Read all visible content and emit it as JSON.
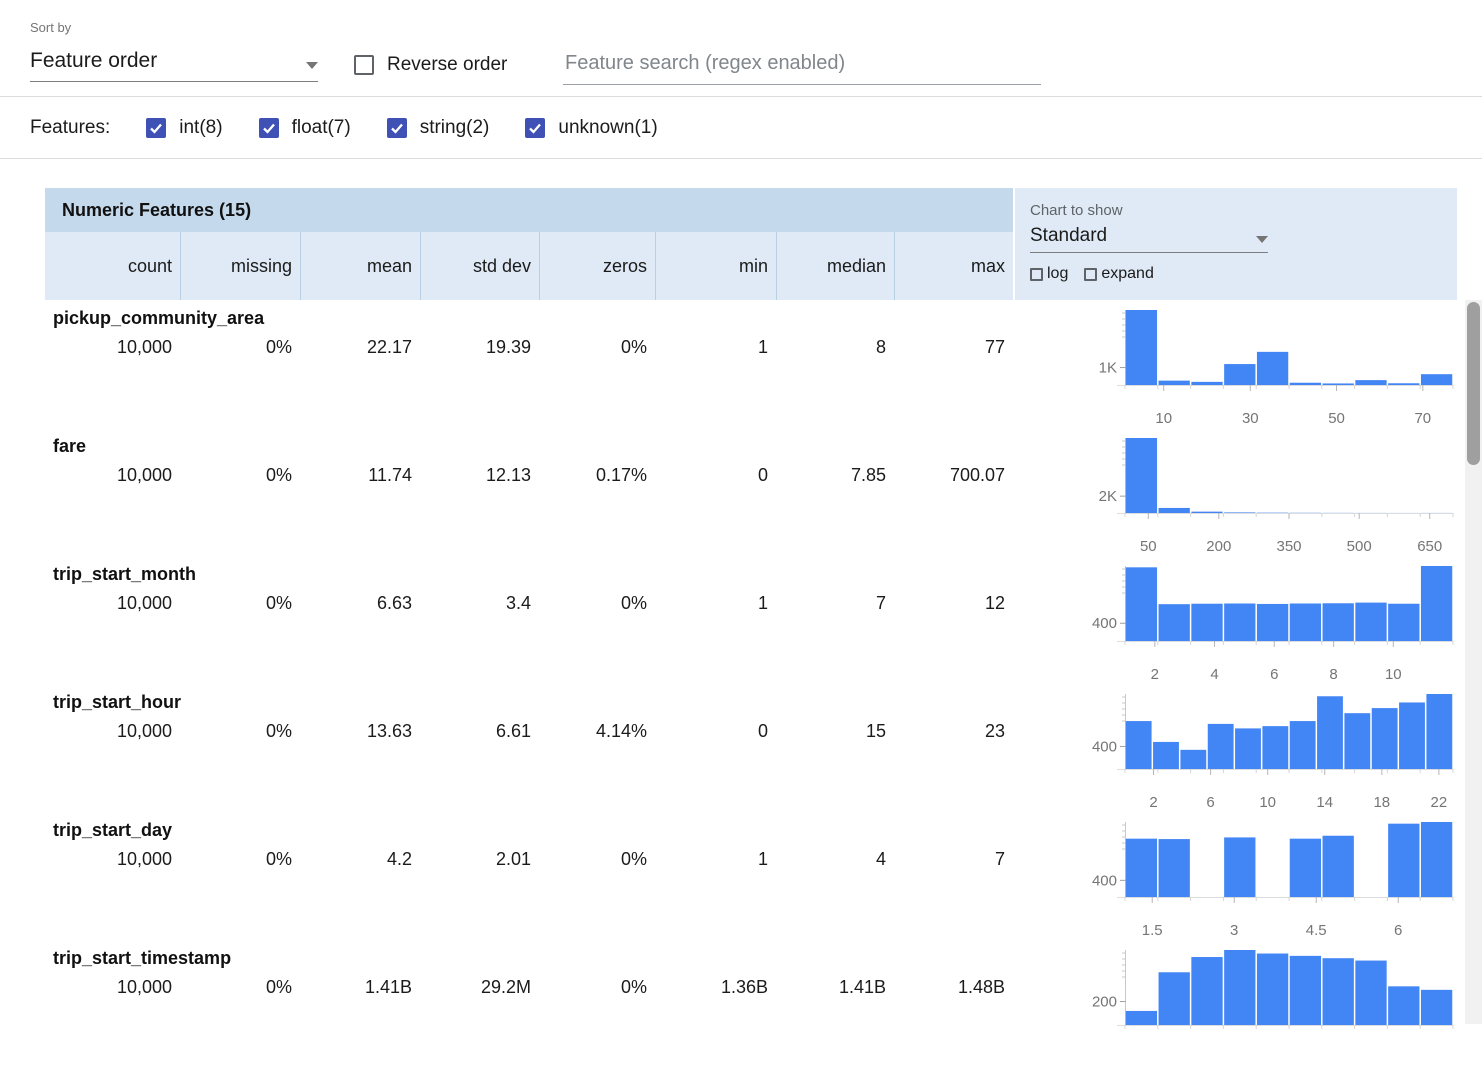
{
  "colors": {
    "accent": "#3f51b5",
    "bar": "#4285f4",
    "header_band": "#c5d9ec",
    "subheader_band": "#dfeaf6"
  },
  "toolbar": {
    "sort_by_label": "Sort by",
    "sort_by_value": "Feature order",
    "reverse_order_label": "Reverse order",
    "search_placeholder": "Feature search (regex enabled)"
  },
  "features_filter": {
    "label": "Features:",
    "items": [
      {
        "label": "int(8)",
        "checked": true
      },
      {
        "label": "float(7)",
        "checked": true
      },
      {
        "label": "string(2)",
        "checked": true
      },
      {
        "label": "unknown(1)",
        "checked": true
      }
    ]
  },
  "table": {
    "title": "Numeric Features (15)",
    "columns": [
      "count",
      "missing",
      "mean",
      "std dev",
      "zeros",
      "min",
      "median",
      "max"
    ],
    "rows": [
      {
        "name": "pickup_community_area",
        "stats": [
          "10,000",
          "0%",
          "22.17",
          "19.39",
          "0%",
          "1",
          "8",
          "77"
        ]
      },
      {
        "name": "fare",
        "stats": [
          "10,000",
          "0%",
          "11.74",
          "12.13",
          "0.17%",
          "0",
          "7.85",
          "700.07"
        ]
      },
      {
        "name": "trip_start_month",
        "stats": [
          "10,000",
          "0%",
          "6.63",
          "3.4",
          "0%",
          "1",
          "7",
          "12"
        ]
      },
      {
        "name": "trip_start_hour",
        "stats": [
          "10,000",
          "0%",
          "13.63",
          "6.61",
          "4.14%",
          "0",
          "15",
          "23"
        ]
      },
      {
        "name": "trip_start_day",
        "stats": [
          "10,000",
          "0%",
          "4.2",
          "2.01",
          "0%",
          "1",
          "4",
          "7"
        ]
      },
      {
        "name": "trip_start_timestamp",
        "stats": [
          "10,000",
          "0%",
          "1.41B",
          "29.2M",
          "0%",
          "1.36B",
          "1.41B",
          "1.48B"
        ]
      }
    ]
  },
  "chart_controls": {
    "label": "Chart to show",
    "selected": "Standard",
    "log_label": "log",
    "expand_label": "expand"
  },
  "chart_data": [
    {
      "type": "bar",
      "feature": "pickup_community_area",
      "x_range": [
        1,
        77
      ],
      "values": [
        4300,
        250,
        180,
        1200,
        1900,
        130,
        90,
        280,
        100,
        620
      ],
      "y_tick": {
        "label": "1K",
        "value": 1000
      },
      "x_ticks": [
        {
          "label": "10",
          "pos": 0.118
        },
        {
          "label": "30",
          "pos": 0.382
        },
        {
          "label": "50",
          "pos": 0.645
        },
        {
          "label": "70",
          "pos": 0.908
        }
      ]
    },
    {
      "type": "bar",
      "feature": "fare",
      "x_range": [
        0,
        700.07
      ],
      "values": [
        8900,
        600,
        160,
        70,
        40,
        25,
        15,
        10,
        6,
        8
      ],
      "y_tick": {
        "label": "2K",
        "value": 2000
      },
      "x_ticks": [
        {
          "label": "50",
          "pos": 0.071
        },
        {
          "label": "200",
          "pos": 0.286
        },
        {
          "label": "350",
          "pos": 0.5
        },
        {
          "label": "500",
          "pos": 0.714
        },
        {
          "label": "650",
          "pos": 0.929
        }
      ]
    },
    {
      "type": "bar",
      "feature": "trip_start_month",
      "x_range": [
        1,
        12
      ],
      "values": [
        1660,
        830,
        840,
        845,
        835,
        845,
        850,
        865,
        840,
        1690
      ],
      "y_tick": {
        "label": "400",
        "value": 400
      },
      "x_ticks": [
        {
          "label": "2",
          "pos": 0.091
        },
        {
          "label": "4",
          "pos": 0.273
        },
        {
          "label": "6",
          "pos": 0.455
        },
        {
          "label": "8",
          "pos": 0.636
        },
        {
          "label": "10",
          "pos": 0.818
        }
      ]
    },
    {
      "type": "bar",
      "feature": "trip_start_hour",
      "x_range": [
        0,
        23
      ],
      "values": [
        850,
        480,
        340,
        800,
        720,
        760,
        850,
        1290,
        990,
        1080,
        1180,
        1330
      ],
      "y_tick": {
        "label": "400",
        "value": 400
      },
      "x_ticks": [
        {
          "label": "2",
          "pos": 0.087
        },
        {
          "label": "6",
          "pos": 0.261
        },
        {
          "label": "10",
          "pos": 0.435
        },
        {
          "label": "14",
          "pos": 0.609
        },
        {
          "label": "18",
          "pos": 0.783
        },
        {
          "label": "22",
          "pos": 0.957
        }
      ]
    },
    {
      "type": "bar",
      "feature": "trip_start_day",
      "x_range": [
        1,
        7
      ],
      "values": [
        1400,
        1390,
        0,
        1430,
        0,
        1400,
        1470,
        0,
        1760,
        1800
      ],
      "y_tick": {
        "label": "400",
        "value": 400
      },
      "x_ticks": [
        {
          "label": "1.5",
          "pos": 0.083
        },
        {
          "label": "3",
          "pos": 0.333
        },
        {
          "label": "4.5",
          "pos": 0.583
        },
        {
          "label": "6",
          "pos": 0.833
        }
      ]
    },
    {
      "type": "bar",
      "feature": "trip_start_timestamp",
      "x_range": [
        1360000000,
        1480000000
      ],
      "values": [
        120,
        450,
        580,
        640,
        610,
        590,
        570,
        550,
        330,
        300
      ],
      "y_tick": {
        "label": "200",
        "value": 200
      },
      "x_ticks": []
    }
  ]
}
